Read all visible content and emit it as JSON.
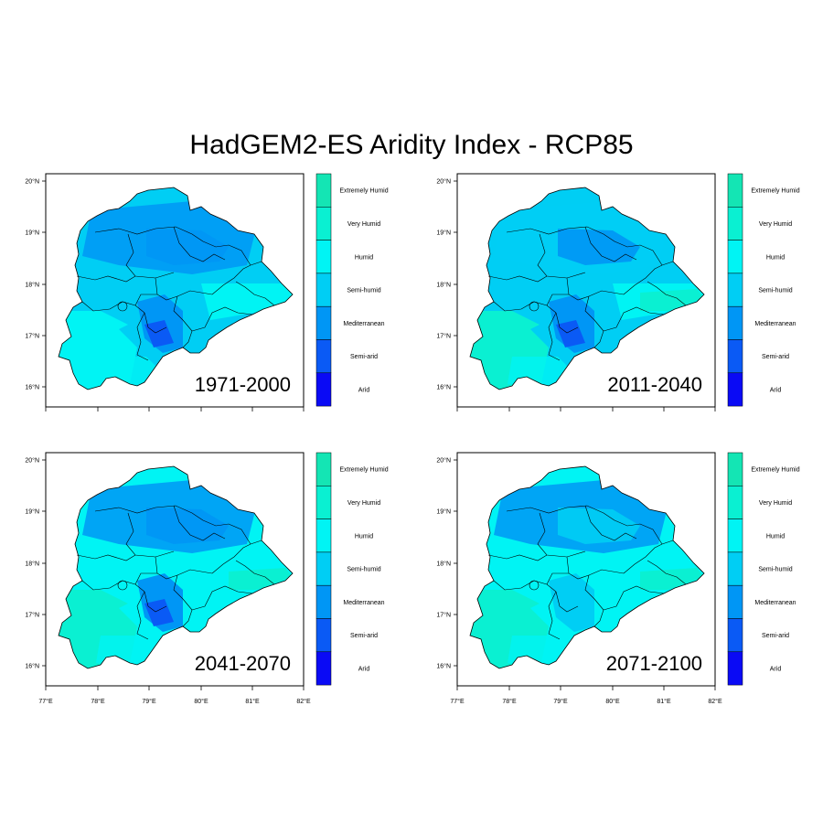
{
  "title": "HadGEM2-ES Aridity Index - RCP85",
  "classes": [
    {
      "label": "Extremely Humid",
      "color": "#14e5b4"
    },
    {
      "label": "Very Humid",
      "color": "#0af0d2"
    },
    {
      "label": "Humid",
      "color": "#00f4f4"
    },
    {
      "label": "Semi-humid",
      "color": "#00cef4"
    },
    {
      "label": "Mediterranean",
      "color": "#0096f5"
    },
    {
      "label": "Semi-arid",
      "color": "#0a5af5"
    },
    {
      "label": "Arid",
      "color": "#0a0af5"
    }
  ],
  "lat_ticks": [
    "20°N",
    "19°N",
    "18°N",
    "17°N",
    "16°N"
  ],
  "lon_ticks": [
    "77°E",
    "78°E",
    "79°E",
    "80°E",
    "81°E",
    "82°E"
  ],
  "panels": [
    {
      "period": "1971-2000",
      "dominant": "Semi-humid",
      "south": "Humid"
    },
    {
      "period": "2011-2040",
      "dominant": "Semi-humid",
      "south": "Very Humid"
    },
    {
      "period": "2041-2070",
      "dominant": "Humid",
      "south": "Very Humid"
    },
    {
      "period": "2071-2100",
      "dominant": "Humid",
      "south": "Very Humid"
    }
  ]
}
